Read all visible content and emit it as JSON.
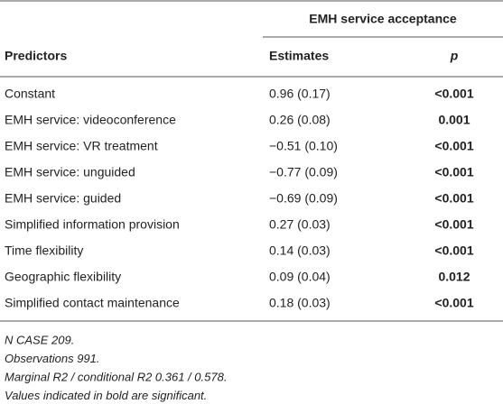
{
  "table": {
    "group_header": "EMH service acceptance",
    "columns": [
      "Predictors",
      "Estimates",
      "p"
    ],
    "rows": [
      [
        "Constant",
        "0.96 (0.17)",
        "<0.001"
      ],
      [
        "EMH service: videoconference",
        "0.26 (0.08)",
        "0.001"
      ],
      [
        "EMH service: VR treatment",
        "−0.51 (0.10)",
        "<0.001"
      ],
      [
        "EMH service: unguided",
        "−0.77 (0.09)",
        "<0.001"
      ],
      [
        "EMH service: guided",
        "−0.69 (0.09)",
        "<0.001"
      ],
      [
        "Simplified information provision",
        "0.27 (0.03)",
        "<0.001"
      ],
      [
        "Time flexibility",
        "0.14 (0.03)",
        "<0.001"
      ],
      [
        "Geographic flexibility",
        "0.09 (0.04)",
        "0.012"
      ],
      [
        "Simplified contact maintenance",
        "0.18 (0.03)",
        "<0.001"
      ]
    ],
    "notes": [
      "N CASE 209.",
      "Observations 991.",
      "Marginal R2 / conditional R2 0.361 / 0.578.",
      "Values indicated in bold are significant."
    ]
  }
}
